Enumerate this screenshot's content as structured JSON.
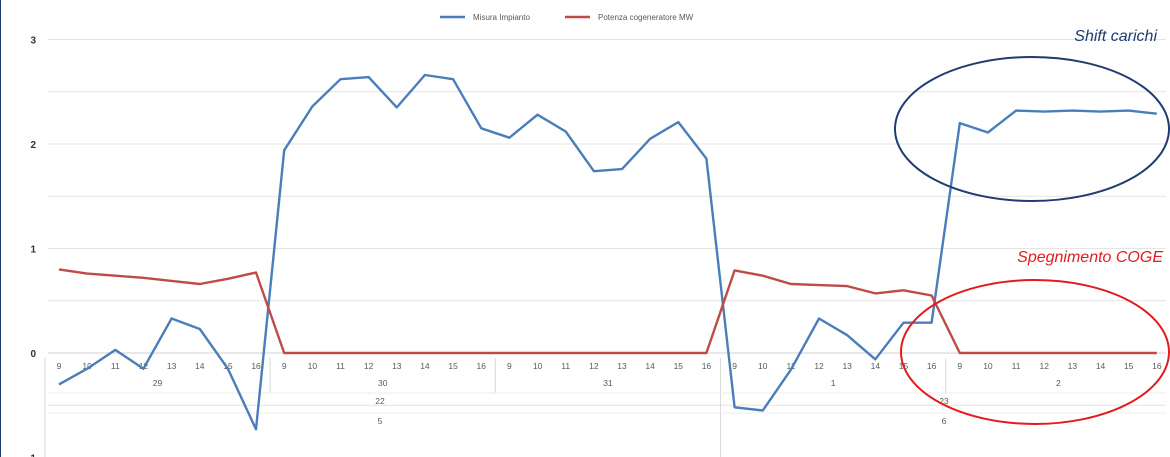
{
  "chart_data": {
    "type": "line",
    "title": "",
    "xlabel": "",
    "ylabel": "",
    "ylim": [
      -1,
      3
    ],
    "yticks": [
      "3",
      "2",
      "1",
      "0",
      "-1"
    ],
    "grid": true,
    "legend_position": "top-center",
    "x_hours": [
      "9",
      "10",
      "11",
      "12",
      "13",
      "14",
      "15",
      "16",
      "9",
      "10",
      "11",
      "12",
      "13",
      "14",
      "15",
      "16",
      "9",
      "10",
      "11",
      "12",
      "13",
      "14",
      "15",
      "16",
      "9",
      "10",
      "11",
      "12",
      "13",
      "14",
      "15",
      "16",
      "9",
      "10",
      "11",
      "12",
      "13",
      "14",
      "15",
      "16"
    ],
    "day_labels": [
      "29",
      "30",
      "31",
      "1",
      "2"
    ],
    "week_labels": [
      "22",
      "23"
    ],
    "month_labels": [
      "5",
      "6"
    ],
    "series": [
      {
        "name": "Misura Impianto",
        "color": "#4a7ebb",
        "values": [
          -0.3,
          -0.15,
          0.03,
          -0.15,
          0.33,
          0.23,
          -0.15,
          -0.73,
          1.94,
          2.36,
          2.62,
          2.64,
          2.35,
          2.66,
          2.62,
          2.15,
          2.06,
          2.28,
          2.12,
          1.74,
          1.76,
          2.05,
          2.21,
          1.86,
          -0.52,
          -0.55,
          -0.16,
          0.33,
          0.17,
          -0.06,
          0.29,
          0.29,
          2.2,
          2.11,
          2.32,
          2.31,
          2.32,
          2.31,
          2.32,
          2.29
        ]
      },
      {
        "name": "Potenza cogeneratore MW",
        "color": "#be4b48",
        "values": [
          0.8,
          0.76,
          0.74,
          0.72,
          0.69,
          0.66,
          0.71,
          0.77,
          0,
          0,
          0,
          0,
          0,
          0,
          0,
          0,
          0,
          0,
          0,
          0,
          0,
          0,
          0,
          0,
          0.79,
          0.74,
          0.66,
          0.65,
          0.64,
          0.57,
          0.6,
          0.55,
          0,
          0,
          0,
          0,
          0,
          0,
          0,
          0
        ]
      }
    ],
    "annotations": [
      {
        "text": "Shift carichi",
        "color": "#1f3b70"
      },
      {
        "text": "Spegnimento COGE",
        "color": "#e41a1c"
      }
    ]
  }
}
